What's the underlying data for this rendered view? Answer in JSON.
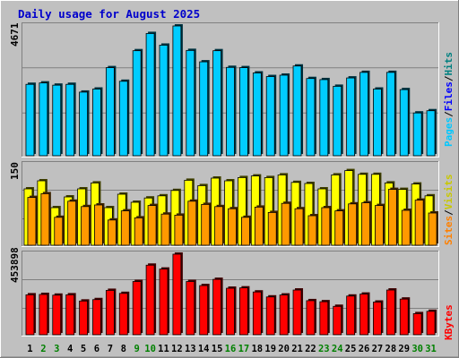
{
  "chart_data": {
    "type": "bar",
    "title": "Daily usage for August 2025",
    "categories": [
      "1",
      "2",
      "3",
      "4",
      "5",
      "6",
      "7",
      "8",
      "9",
      "10",
      "11",
      "12",
      "13",
      "14",
      "15",
      "16",
      "17",
      "18",
      "19",
      "20",
      "21",
      "22",
      "23",
      "24",
      "25",
      "26",
      "27",
      "28",
      "29",
      "30",
      "31"
    ],
    "weekend_days": [
      "2",
      "3",
      "9",
      "10",
      "16",
      "17",
      "23",
      "24",
      "30",
      "31"
    ],
    "panels": [
      {
        "id": "pages_files_hits",
        "ymax_label": "4671",
        "ymax": 4671,
        "legend": [
          "Pages",
          "Files",
          "Hits"
        ],
        "series": [
          {
            "name": "Hits",
            "color": "#00ccff",
            "values": [
              2570,
              2620,
              2540,
              2570,
              2290,
              2400,
              3170,
              2680,
              3780,
              4400,
              3980,
              4671,
              3790,
              3380,
              3780,
              3180,
              3170,
              2980,
              2850,
              2900,
              3230,
              2780,
              2740,
              2500,
              2800,
              3000,
              2400,
              3000,
              2380,
              1540,
              1620
            ]
          }
        ],
        "grid_fracs": [
          0.333,
          0.667
        ]
      },
      {
        "id": "visits_sites",
        "ymax_label": "150",
        "ymax": 150,
        "legend": [
          "Sites",
          "Visits"
        ],
        "series": [
          {
            "name": "Visits",
            "color": "#ffff00",
            "values": [
              105,
              120,
              70,
              90,
              105,
              116,
              70,
              95,
              80,
              88,
              92,
              102,
              121,
              111,
              125,
              120,
              126,
              129,
              126,
              131,
              117,
              115,
              105,
              131,
              139,
              132,
              132,
              116,
              104,
              114,
              92
            ]
          },
          {
            "name": "Sites",
            "color": "#ff9900",
            "values": [
              89,
              96,
              52,
              82,
              72,
              75,
              47,
              64,
              51,
              74,
              58,
              56,
              82,
              76,
              72,
              68,
              52,
              71,
              61,
              78,
              68,
              55,
              70,
              64,
              77,
              79,
              74,
              104,
              65,
              84,
              60
            ]
          }
        ],
        "grid_fracs": [
          0.333,
          0.667
        ]
      },
      {
        "id": "kbytes",
        "ymax_label": "453898",
        "ymax": 453898,
        "legend": [
          "KBytes"
        ],
        "series": [
          {
            "name": "KBytes",
            "color": "#ff0000",
            "values": [
              225000,
              227000,
              223000,
              225000,
              190000,
              198000,
              250000,
              233000,
              300000,
              392000,
              370000,
              453898,
              300000,
              277000,
              312000,
              262000,
              264000,
              241000,
              213000,
              224000,
              252000,
              192000,
              186000,
              160000,
              218000,
              229000,
              184000,
              252000,
              201000,
              119000,
              132000
            ]
          }
        ],
        "grid_fracs": [
          0.333,
          0.667
        ]
      }
    ],
    "grid": true,
    "colors": {
      "background": "#c0c0c0",
      "title": "#0000ff",
      "pages": "#00c8ff",
      "files": "#0000ff",
      "hits": "#008080",
      "sites": "#ff8000",
      "visits": "#c8c800",
      "kbytes": "#ff0000",
      "weekday": "#000000",
      "weekend": "#008000"
    }
  }
}
